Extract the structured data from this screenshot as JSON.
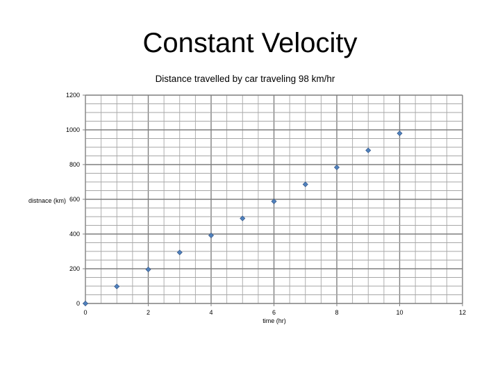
{
  "slide": {
    "title": "Constant Velocity"
  },
  "chart_data": {
    "type": "scatter",
    "title": "Distance travelled by car traveling 98 km/hr",
    "xlabel": "time (hr)",
    "ylabel": "distnace (km)",
    "xlim": [
      0,
      12
    ],
    "ylim": [
      0,
      1200
    ],
    "xticks": [
      0,
      2,
      4,
      6,
      8,
      10,
      12
    ],
    "yticks": [
      0,
      200,
      400,
      600,
      800,
      1000,
      1200
    ],
    "grid": true,
    "legend": "none",
    "marker_color": "#4f81bd",
    "series": [
      {
        "x": [
          0,
          1,
          2,
          3,
          4,
          5,
          6,
          7,
          8,
          9,
          10
        ],
        "y": [
          0,
          98,
          196,
          294,
          392,
          490,
          588,
          686,
          784,
          882,
          980
        ]
      }
    ]
  }
}
